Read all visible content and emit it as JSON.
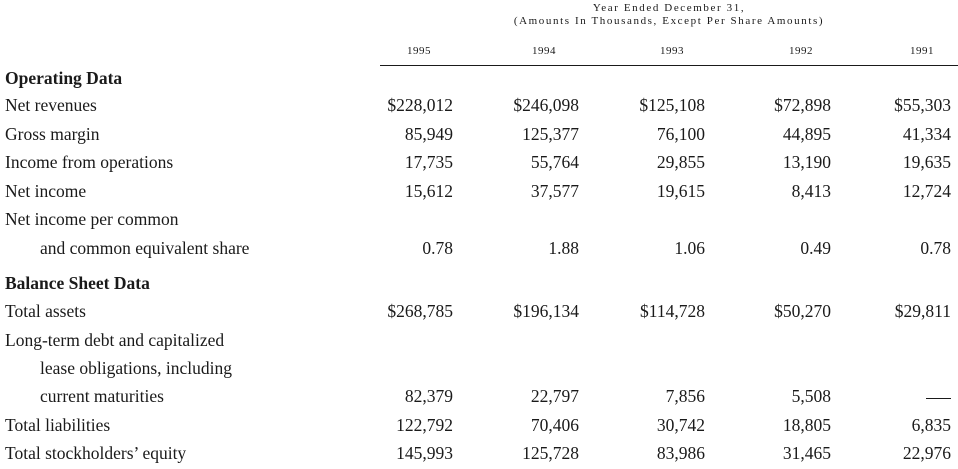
{
  "header": {
    "line1": "Year Ended December 31,",
    "line2": "(Amounts In Thousands, Except Per Share Amounts)",
    "years": [
      "1995",
      "1994",
      "1993",
      "1992",
      "1991"
    ]
  },
  "rows": [
    {
      "label": "Operating Data",
      "type": "section",
      "values": []
    },
    {
      "label": "Net revenues",
      "type": "data",
      "values": [
        "$228,012",
        "$246,098",
        "$125,108",
        "$72,898",
        "$55,303"
      ]
    },
    {
      "label": "Gross margin",
      "type": "data",
      "values": [
        "85,949",
        "125,377",
        "76,100",
        "44,895",
        "41,334"
      ]
    },
    {
      "label": "Income from operations",
      "type": "data",
      "values": [
        "17,735",
        "55,764",
        "29,855",
        "13,190",
        "19,635"
      ]
    },
    {
      "label": "Net income",
      "type": "data",
      "values": [
        "15,612",
        "37,577",
        "19,615",
        "8,413",
        "12,724"
      ]
    },
    {
      "label": "Net income per common",
      "type": "text",
      "values": []
    },
    {
      "label": "and common equivalent share",
      "type": "data",
      "indent": true,
      "values": [
        "0.78",
        "1.88",
        "1.06",
        "0.49",
        "0.78"
      ]
    },
    {
      "label": "Balance Sheet Data",
      "type": "section",
      "values": []
    },
    {
      "label": "Total assets",
      "type": "data",
      "values": [
        "$268,785",
        "$196,134",
        "$114,728",
        "$50,270",
        "$29,811"
      ]
    },
    {
      "label": "Long-term debt and capitalized",
      "type": "text",
      "values": []
    },
    {
      "label": "lease obligations, including",
      "type": "text",
      "indent": true,
      "values": []
    },
    {
      "label": "current maturities",
      "type": "data",
      "indent": true,
      "values": [
        "82,379",
        "22,797",
        "7,856",
        "5,508",
        "—"
      ]
    },
    {
      "label": "Total liabilities",
      "type": "data",
      "values": [
        "122,792",
        "70,406",
        "30,742",
        "18,805",
        "6,835"
      ]
    },
    {
      "label": "Total stockholders’ equity",
      "type": "data",
      "values": [
        "145,993",
        "125,728",
        "83,986",
        "31,465",
        "22,976"
      ]
    }
  ]
}
